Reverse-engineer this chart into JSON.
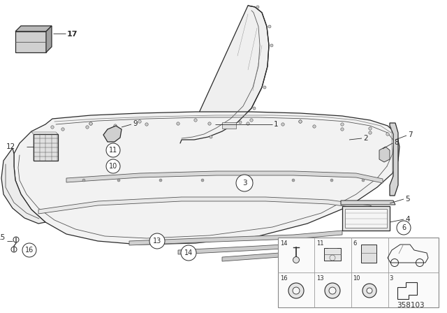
{
  "bg_color": "#ffffff",
  "lc": "#2a2a2a",
  "lc_light": "#888888",
  "lc_mid": "#555555",
  "diagram_id": "358103",
  "fig_width": 6.4,
  "fig_height": 4.48,
  "dpi": 100
}
